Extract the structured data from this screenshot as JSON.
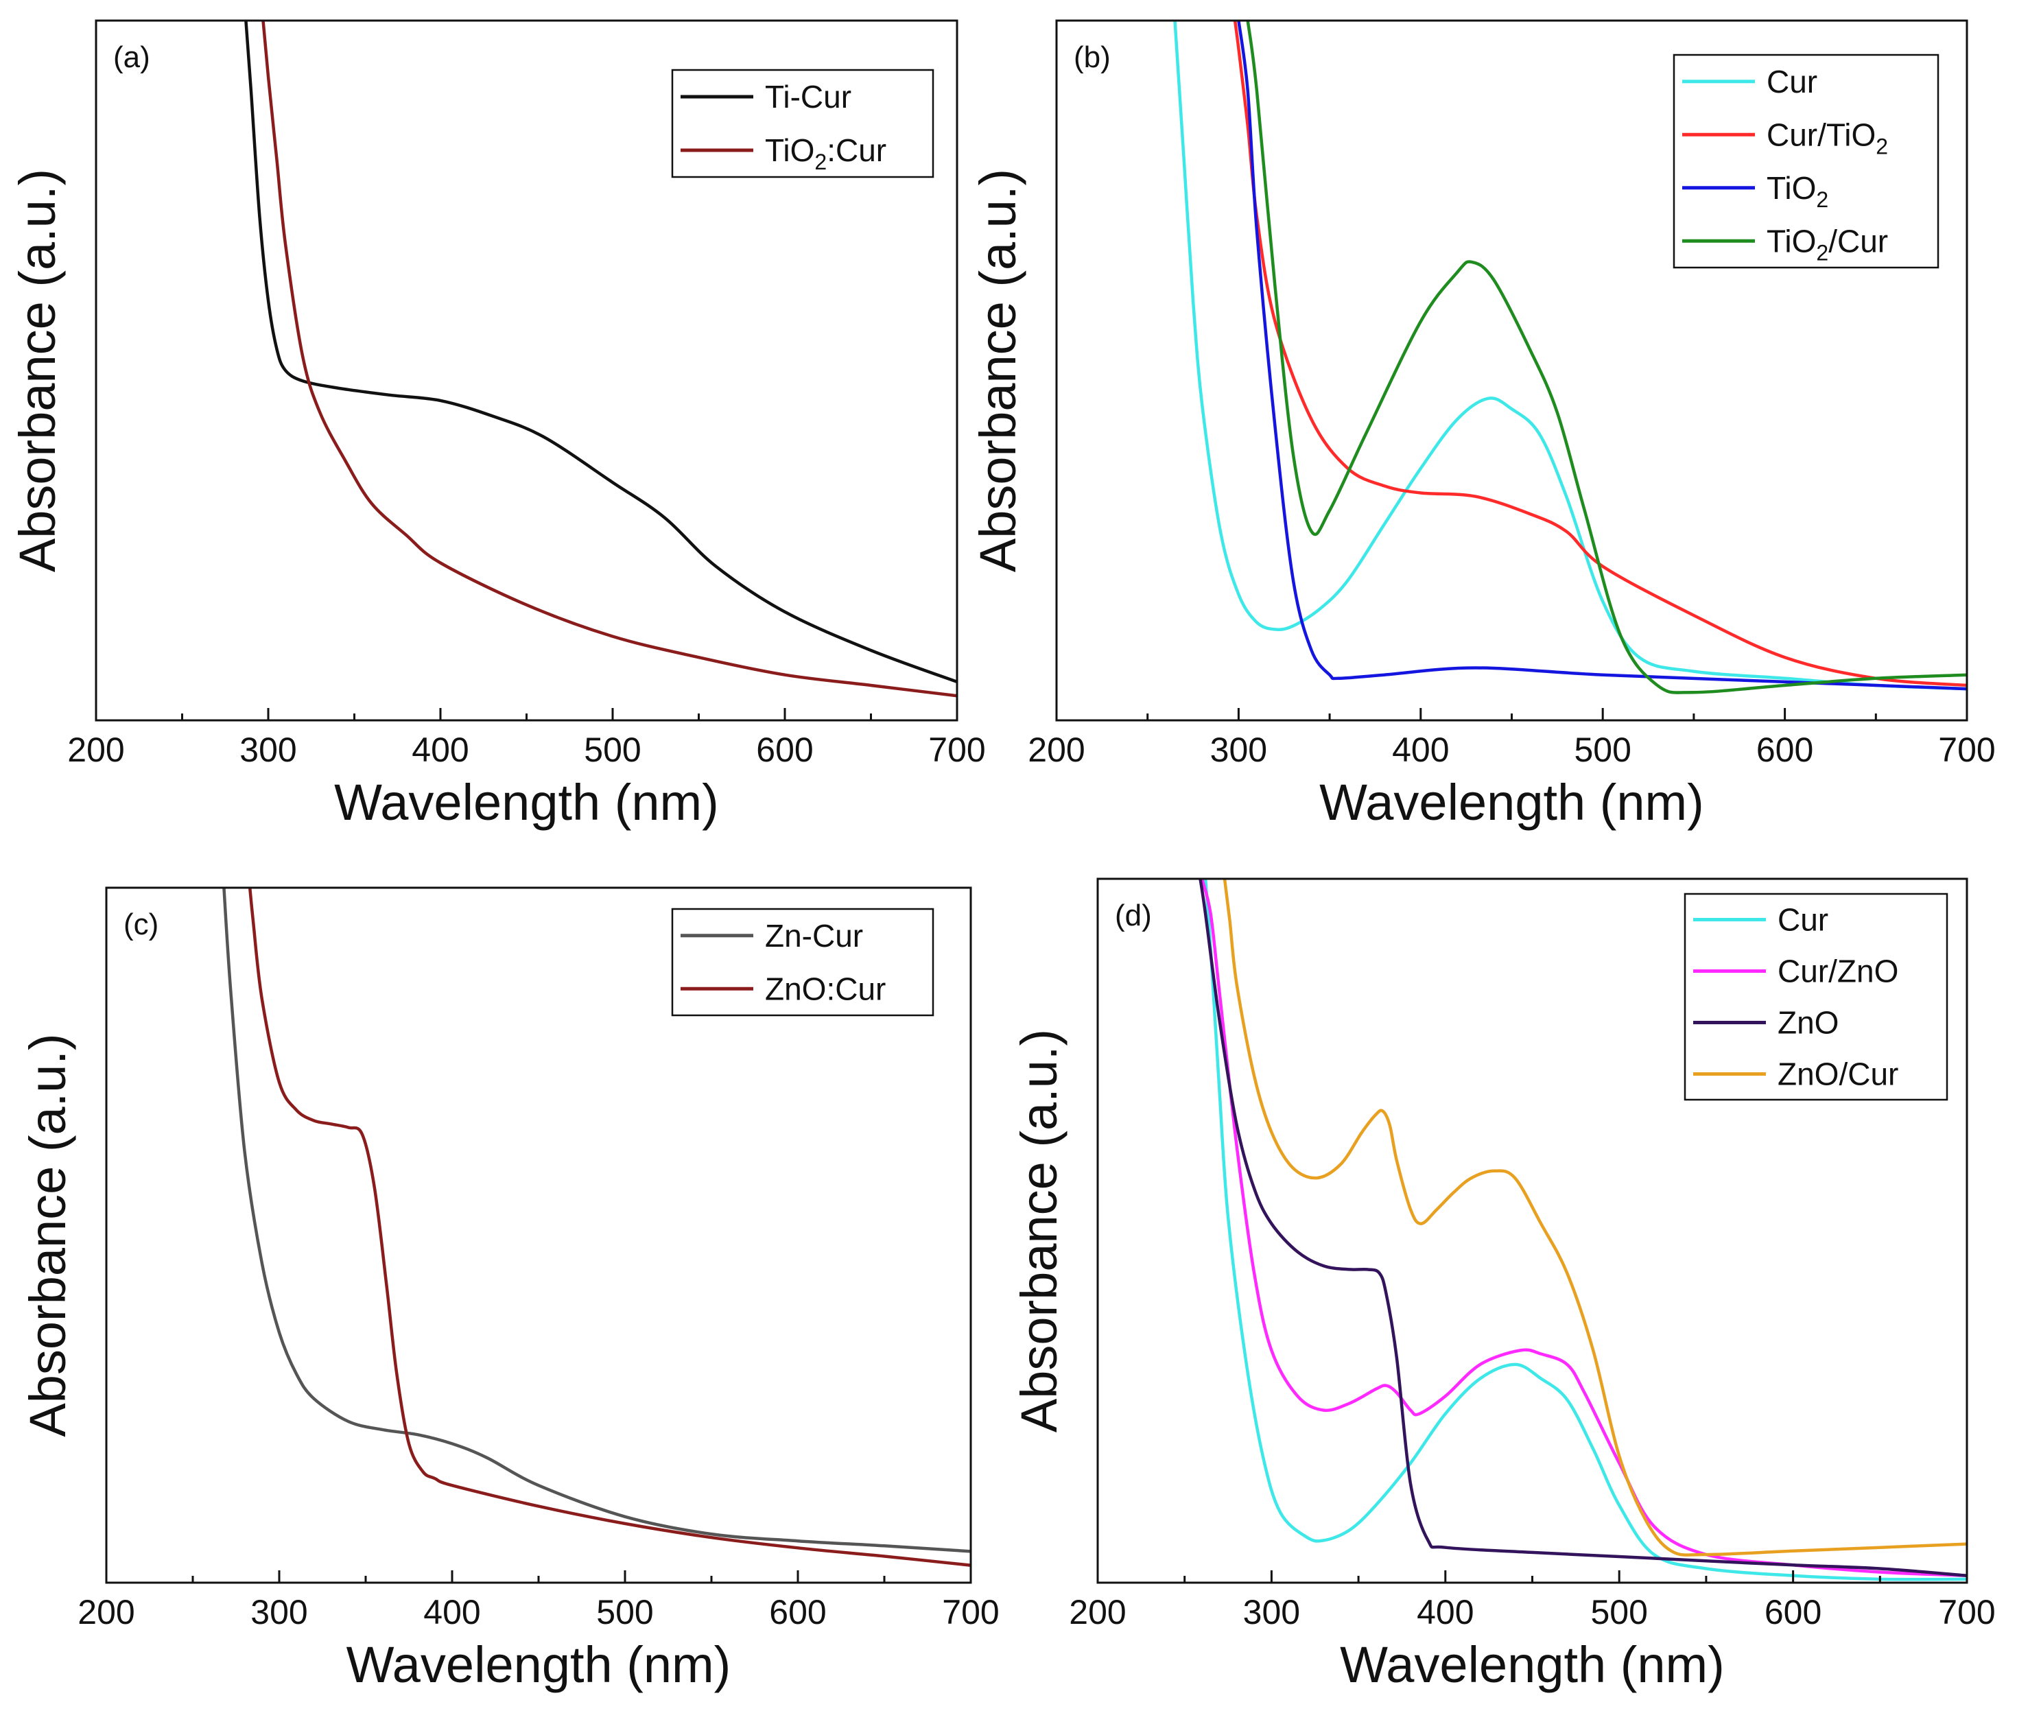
{
  "chart_data": [
    {
      "type": "line",
      "panel_label": "(a)",
      "xlabel": "Wavelength (nm)",
      "ylabel": "Absorbance (a.u.)",
      "xlim": [
        200,
        700
      ],
      "ylim": [
        0,
        1
      ],
      "x_ticks": [
        "200",
        "300",
        "400",
        "500",
        "600",
        "700"
      ],
      "y_ticks": [],
      "legend_position": "top-right",
      "series": [
        {
          "name": "Ti-Cur",
          "name_main": "Ti-Cur",
          "color": "#111111",
          "x": [
            287,
            290,
            295,
            300,
            305,
            310,
            320,
            340,
            370,
            400,
            430,
            460,
            500,
            530,
            560,
            600,
            650,
            700
          ],
          "y": [
            1.0,
            0.9,
            0.72,
            0.6,
            0.53,
            0.5,
            0.485,
            0.475,
            0.465,
            0.457,
            0.435,
            0.405,
            0.34,
            0.29,
            0.22,
            0.155,
            0.1,
            0.055
          ]
        },
        {
          "name": "TiO2:Cur",
          "name_main": "TiO",
          "name_sub": "2",
          "name_tail": ":Cur",
          "color": "#8b1c1c",
          "x": [
            297,
            300,
            305,
            310,
            320,
            330,
            345,
            360,
            380,
            400,
            450,
            500,
            550,
            600,
            650,
            700
          ],
          "y": [
            1.0,
            0.92,
            0.8,
            0.68,
            0.52,
            0.44,
            0.37,
            0.31,
            0.265,
            0.225,
            0.165,
            0.12,
            0.09,
            0.065,
            0.05,
            0.035
          ]
        }
      ]
    },
    {
      "type": "line",
      "panel_label": "(b)",
      "xlabel": "Wavelength (nm)",
      "ylabel": "Absorbance (a.u.)",
      "xlim": [
        200,
        700
      ],
      "ylim": [
        0,
        1
      ],
      "x_ticks": [
        "200",
        "300",
        "400",
        "500",
        "600",
        "700"
      ],
      "y_ticks": [],
      "legend_position": "top-right",
      "series": [
        {
          "name": "Cur",
          "name_main": "Cur",
          "color": "#3fe8e8",
          "x": [
            265,
            270,
            275,
            280,
            290,
            300,
            310,
            320,
            330,
            345,
            360,
            380,
            400,
            420,
            437,
            450,
            465,
            480,
            500,
            520,
            550,
            600,
            650,
            700
          ],
          "y": [
            1.0,
            0.8,
            0.6,
            0.45,
            0.27,
            0.18,
            0.14,
            0.13,
            0.135,
            0.16,
            0.2,
            0.28,
            0.36,
            0.43,
            0.46,
            0.445,
            0.41,
            0.32,
            0.17,
            0.09,
            0.07,
            0.06,
            0.05,
            0.045
          ]
        },
        {
          "name": "Cur/TiO2",
          "name_main": "Cur/TiO",
          "name_sub": "2",
          "name_tail": "",
          "color": "#ff2a2a",
          "x": [
            298,
            300,
            305,
            310,
            320,
            340,
            360,
            380,
            400,
            430,
            460,
            480,
            500,
            550,
            600,
            650,
            700
          ],
          "y": [
            1.0,
            0.96,
            0.85,
            0.72,
            0.57,
            0.43,
            0.36,
            0.335,
            0.325,
            0.32,
            0.295,
            0.27,
            0.22,
            0.15,
            0.09,
            0.06,
            0.05
          ]
        },
        {
          "name": "TiO2",
          "name_main": "TiO",
          "name_sub": "2",
          "name_tail": "",
          "color": "#1515e0",
          "x": [
            300,
            305,
            310,
            320,
            330,
            340,
            350,
            355,
            380,
            430,
            500,
            600,
            700
          ],
          "y": [
            1.0,
            0.9,
            0.7,
            0.42,
            0.2,
            0.1,
            0.065,
            0.06,
            0.065,
            0.075,
            0.065,
            0.055,
            0.045
          ]
        },
        {
          "name": "TiO2/Cur",
          "name_main": "TiO",
          "name_sub": "2",
          "name_tail": "/Cur",
          "color": "#1f8c1f",
          "x": [
            305,
            310,
            320,
            330,
            340,
            350,
            370,
            400,
            420,
            428,
            440,
            460,
            475,
            490,
            510,
            530,
            550,
            600,
            650,
            700
          ],
          "y": [
            1.0,
            0.9,
            0.62,
            0.38,
            0.27,
            0.3,
            0.41,
            0.57,
            0.64,
            0.655,
            0.63,
            0.53,
            0.44,
            0.3,
            0.12,
            0.05,
            0.04,
            0.05,
            0.06,
            0.065
          ]
        }
      ]
    },
    {
      "type": "line",
      "panel_label": "(c)",
      "xlabel": "Wavelength (nm)",
      "ylabel": "Absorbance (a.u.)",
      "xlim": [
        200,
        700
      ],
      "ylim": [
        0,
        1
      ],
      "x_ticks": [
        "200",
        "300",
        "400",
        "500",
        "600",
        "700"
      ],
      "y_ticks": [],
      "legend_position": "top-right",
      "series": [
        {
          "name": "Zn-Cur",
          "name_main": "Zn-Cur",
          "color": "#555555",
          "x": [
            268,
            272,
            280,
            290,
            300,
            310,
            320,
            340,
            360,
            380,
            400,
            420,
            450,
            500,
            550,
            600,
            650,
            700
          ],
          "y": [
            1.0,
            0.85,
            0.62,
            0.46,
            0.36,
            0.3,
            0.265,
            0.232,
            0.22,
            0.213,
            0.2,
            0.18,
            0.14,
            0.095,
            0.07,
            0.06,
            0.053,
            0.045
          ]
        },
        {
          "name": "ZnO:Cur",
          "name_main": "ZnO:Cur",
          "color": "#8b1c1c",
          "x": [
            283,
            285,
            290,
            300,
            310,
            320,
            330,
            340,
            348,
            355,
            362,
            368,
            375,
            383,
            390,
            400,
            450,
            500,
            550,
            600,
            650,
            700
          ],
          "y": [
            1.0,
            0.95,
            0.84,
            0.72,
            0.68,
            0.665,
            0.66,
            0.655,
            0.645,
            0.57,
            0.43,
            0.3,
            0.2,
            0.16,
            0.15,
            0.14,
            0.11,
            0.085,
            0.065,
            0.05,
            0.038,
            0.025
          ]
        }
      ]
    },
    {
      "type": "line",
      "panel_label": "(d)",
      "xlabel": "Wavelength (nm)",
      "ylabel": "Absorbance (a.u.)",
      "xlim": [
        200,
        700
      ],
      "ylim": [
        0,
        1
      ],
      "x_ticks": [
        "200",
        "300",
        "400",
        "500",
        "600",
        "700"
      ],
      "y_ticks": [],
      "legend_position": "top-right",
      "series": [
        {
          "name": "Cur",
          "name_main": "Cur",
          "color": "#3fe8e8",
          "x": [
            262,
            265,
            270,
            275,
            285,
            295,
            305,
            320,
            330,
            345,
            360,
            380,
            400,
            420,
            440,
            455,
            470,
            485,
            500,
            520,
            550,
            600,
            650,
            700
          ],
          "y": [
            1.0,
            0.9,
            0.7,
            0.52,
            0.32,
            0.18,
            0.1,
            0.065,
            0.06,
            0.075,
            0.11,
            0.17,
            0.24,
            0.29,
            0.31,
            0.29,
            0.26,
            0.19,
            0.11,
            0.04,
            0.02,
            0.01,
            0.005,
            0.005
          ]
        },
        {
          "name": "Cur/ZnO",
          "name_main": "Cur/ZnO",
          "color": "#ff2aff",
          "x": [
            260,
            265,
            270,
            280,
            290,
            300,
            315,
            330,
            345,
            360,
            366,
            372,
            380,
            385,
            400,
            420,
            443,
            455,
            470,
            480,
            500,
            520,
            550,
            600,
            650,
            700
          ],
          "y": [
            1.0,
            0.95,
            0.84,
            0.62,
            0.44,
            0.33,
            0.265,
            0.245,
            0.255,
            0.275,
            0.28,
            0.27,
            0.245,
            0.24,
            0.265,
            0.31,
            0.33,
            0.325,
            0.31,
            0.27,
            0.17,
            0.08,
            0.04,
            0.025,
            0.015,
            0.01
          ]
        },
        {
          "name": "ZnO",
          "name_main": "ZnO",
          "color": "#33145c",
          "x": [
            259,
            262,
            270,
            280,
            290,
            300,
            315,
            330,
            345,
            355,
            362,
            366,
            372,
            380,
            390,
            400,
            450,
            500,
            550,
            600,
            650,
            700
          ],
          "y": [
            1.0,
            0.95,
            0.8,
            0.65,
            0.56,
            0.51,
            0.47,
            0.45,
            0.445,
            0.445,
            0.44,
            0.41,
            0.32,
            0.14,
            0.06,
            0.05,
            0.043,
            0.037,
            0.031,
            0.025,
            0.02,
            0.01
          ]
        },
        {
          "name": "ZnO/Cur",
          "name_main": "ZnO/Cur",
          "color": "#e8a020",
          "x": [
            273,
            276,
            280,
            290,
            300,
            312,
            326,
            340,
            352,
            360,
            364,
            368,
            372,
            380,
            386,
            395,
            405,
            415,
            428,
            440,
            455,
            470,
            485,
            500,
            515,
            530,
            550,
            600,
            650,
            700
          ],
          "y": [
            1.0,
            0.94,
            0.85,
            0.72,
            0.64,
            0.59,
            0.575,
            0.595,
            0.64,
            0.665,
            0.67,
            0.65,
            0.6,
            0.53,
            0.51,
            0.53,
            0.555,
            0.575,
            0.585,
            0.575,
            0.51,
            0.44,
            0.33,
            0.18,
            0.09,
            0.045,
            0.04,
            0.045,
            0.05,
            0.055
          ]
        }
      ]
    }
  ]
}
